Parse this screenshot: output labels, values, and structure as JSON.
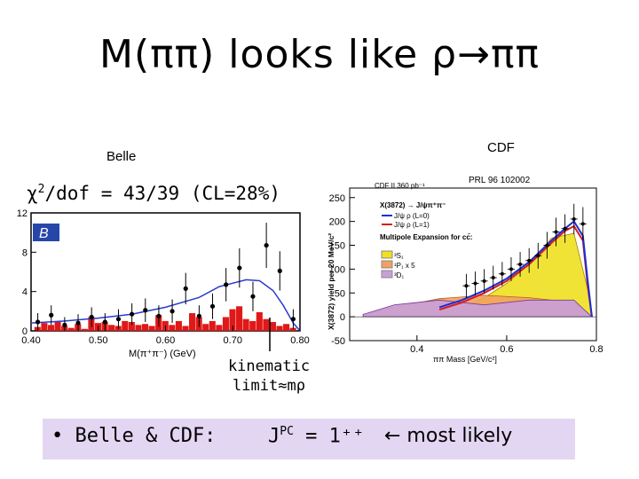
{
  "title": "M(ππ) looks like ρ→ππ",
  "belle_label": "Belle",
  "cdf_label": "CDF",
  "chi2": {
    "prefix": "χ",
    "sup": "2",
    "text": "/dof = 43/39 (CL=28%)"
  },
  "kinematic": {
    "line1": "kinematic",
    "line2": "limit≈mρ"
  },
  "bottom": {
    "bullet": "• Belle & CDF:",
    "jpc": "J",
    "jpc_sup": "PC",
    "jpc_value": " = 1⁺⁺",
    "arrow_text": "← most likely"
  },
  "chart_data": [
    {
      "type": "bar",
      "title": "Belle",
      "xlabel": "M(π⁺π⁻) (GeV)",
      "ylabel": "",
      "xlim": [
        0.4,
        0.8
      ],
      "ylim": [
        0,
        12
      ],
      "x_ticks": [
        "0.40",
        "0.50",
        "0.60",
        "0.70",
        "0.80"
      ],
      "y_ticks": [
        "0",
        "4",
        "8",
        "12"
      ],
      "annotations": [
        "χ2/dof = 43/39 (CL=28%)",
        "kinematic limit≈mρ"
      ],
      "series": [
        {
          "name": "background histogram",
          "x": [
            0.41,
            0.42,
            0.43,
            0.44,
            0.45,
            0.46,
            0.47,
            0.48,
            0.49,
            0.5,
            0.51,
            0.52,
            0.53,
            0.54,
            0.55,
            0.56,
            0.57,
            0.58,
            0.59,
            0.6,
            0.61,
            0.62,
            0.63,
            0.64,
            0.65,
            0.66,
            0.67,
            0.68,
            0.69,
            0.7,
            0.71,
            0.72,
            0.73,
            0.74,
            0.75,
            0.76,
            0.77,
            0.78,
            0.79
          ],
          "values": [
            0.4,
            0.8,
            0.6,
            0.9,
            0.5,
            0.3,
            0.7,
            0.2,
            1.4,
            0.8,
            0.9,
            0.6,
            0.5,
            1.0,
            0.9,
            0.6,
            0.7,
            0.5,
            1.6,
            1.0,
            0.6,
            1.0,
            0.5,
            1.8,
            1.4,
            0.7,
            1.0,
            0.6,
            1.4,
            2.2,
            2.5,
            1.2,
            1.0,
            1.9,
            1.2,
            0.9,
            0.5,
            0.7,
            0.3
          ]
        },
        {
          "name": "data",
          "x": [
            0.41,
            0.43,
            0.45,
            0.47,
            0.49,
            0.51,
            0.53,
            0.55,
            0.57,
            0.59,
            0.61,
            0.63,
            0.65,
            0.67,
            0.69,
            0.71,
            0.73,
            0.75,
            0.77,
            0.79
          ],
          "y": [
            0.9,
            1.6,
            0.6,
            0.8,
            1.4,
            0.9,
            1.2,
            1.7,
            2.1,
            1.5,
            2.0,
            4.3,
            1.5,
            2.5,
            4.7,
            6.4,
            3.5,
            8.7,
            6.1,
            1.2
          ],
          "err": [
            0.9,
            1.0,
            0.8,
            0.9,
            1.0,
            0.9,
            1.0,
            1.1,
            1.2,
            1.1,
            1.2,
            1.6,
            1.1,
            1.3,
            1.7,
            2.0,
            1.5,
            2.3,
            2.0,
            1.0
          ]
        },
        {
          "name": "ρ fit",
          "x": [
            0.4,
            0.45,
            0.5,
            0.55,
            0.6,
            0.65,
            0.68,
            0.72,
            0.74,
            0.76,
            0.775,
            0.79,
            0.8
          ],
          "y": [
            0.8,
            1.0,
            1.3,
            1.7,
            2.4,
            3.4,
            4.5,
            5.2,
            5.1,
            4.1,
            2.6,
            0.8,
            0.0
          ]
        }
      ]
    },
    {
      "type": "bar",
      "title": "CDF",
      "subtitle": "PRL 96 102002",
      "xlabel": "ππ Mass [GeV/c²]",
      "ylabel": "X(3872) yield per 20 MeV/c²",
      "xlim": [
        0.25,
        0.8
      ],
      "ylim": [
        -50,
        270
      ],
      "x_ticks": [
        "0.4",
        "0.6",
        "0.8"
      ],
      "y_ticks": [
        "-50",
        "0",
        "50",
        "100",
        "150",
        "200",
        "250"
      ],
      "legend": {
        "placement": "top-left",
        "header": "CDF II  360 pb⁻¹",
        "entries": [
          "X(3872) → J/ψπ⁺π⁻",
          "J/ψ ρ (L=0)",
          "J/ψ ρ (L=1)",
          "Multipole Expansion for cc̄:",
          "³S₁",
          "¹P₁ x 5",
          "³D₁"
        ]
      },
      "series": [
        {
          "name": "data",
          "x": [
            0.51,
            0.53,
            0.55,
            0.57,
            0.59,
            0.61,
            0.63,
            0.65,
            0.67,
            0.69,
            0.71,
            0.73,
            0.75,
            0.77
          ],
          "y": [
            65,
            70,
            75,
            82,
            90,
            100,
            110,
            118,
            128,
            150,
            178,
            185,
            205,
            195
          ],
          "err": [
            25,
            25,
            25,
            25,
            25,
            25,
            26,
            26,
            27,
            28,
            30,
            30,
            32,
            35
          ]
        },
        {
          "name": "J/ψ ρ (L=0)",
          "x": [
            0.45,
            0.5,
            0.55,
            0.6,
            0.65,
            0.7,
            0.73,
            0.75,
            0.77,
            0.78,
            0.79
          ],
          "y": [
            20,
            35,
            55,
            80,
            115,
            160,
            185,
            200,
            170,
            80,
            0
          ]
        },
        {
          "name": "J/ψ ρ (L=1)",
          "x": [
            0.45,
            0.5,
            0.55,
            0.6,
            0.65,
            0.7,
            0.73,
            0.75,
            0.77,
            0.78,
            0.79
          ],
          "y": [
            15,
            30,
            50,
            75,
            110,
            155,
            180,
            190,
            160,
            70,
            0
          ]
        },
        {
          "name": "³S₁ band",
          "x": [
            0.45,
            0.5,
            0.55,
            0.6,
            0.65,
            0.7,
            0.75,
            0.78,
            0.79
          ],
          "y": [
            10,
            20,
            40,
            70,
            110,
            165,
            175,
            60,
            0
          ]
        },
        {
          "name": "¹P₁ x 5 band",
          "x": [
            0.28,
            0.35,
            0.45,
            0.55,
            0.65,
            0.75,
            0.79
          ],
          "y": [
            5,
            20,
            38,
            45,
            40,
            30,
            0
          ]
        },
        {
          "name": "³D₁ band",
          "x": [
            0.28,
            0.35,
            0.45,
            0.55,
            0.65,
            0.75,
            0.79
          ],
          "y": [
            5,
            25,
            35,
            25,
            35,
            35,
            0
          ]
        }
      ]
    }
  ]
}
